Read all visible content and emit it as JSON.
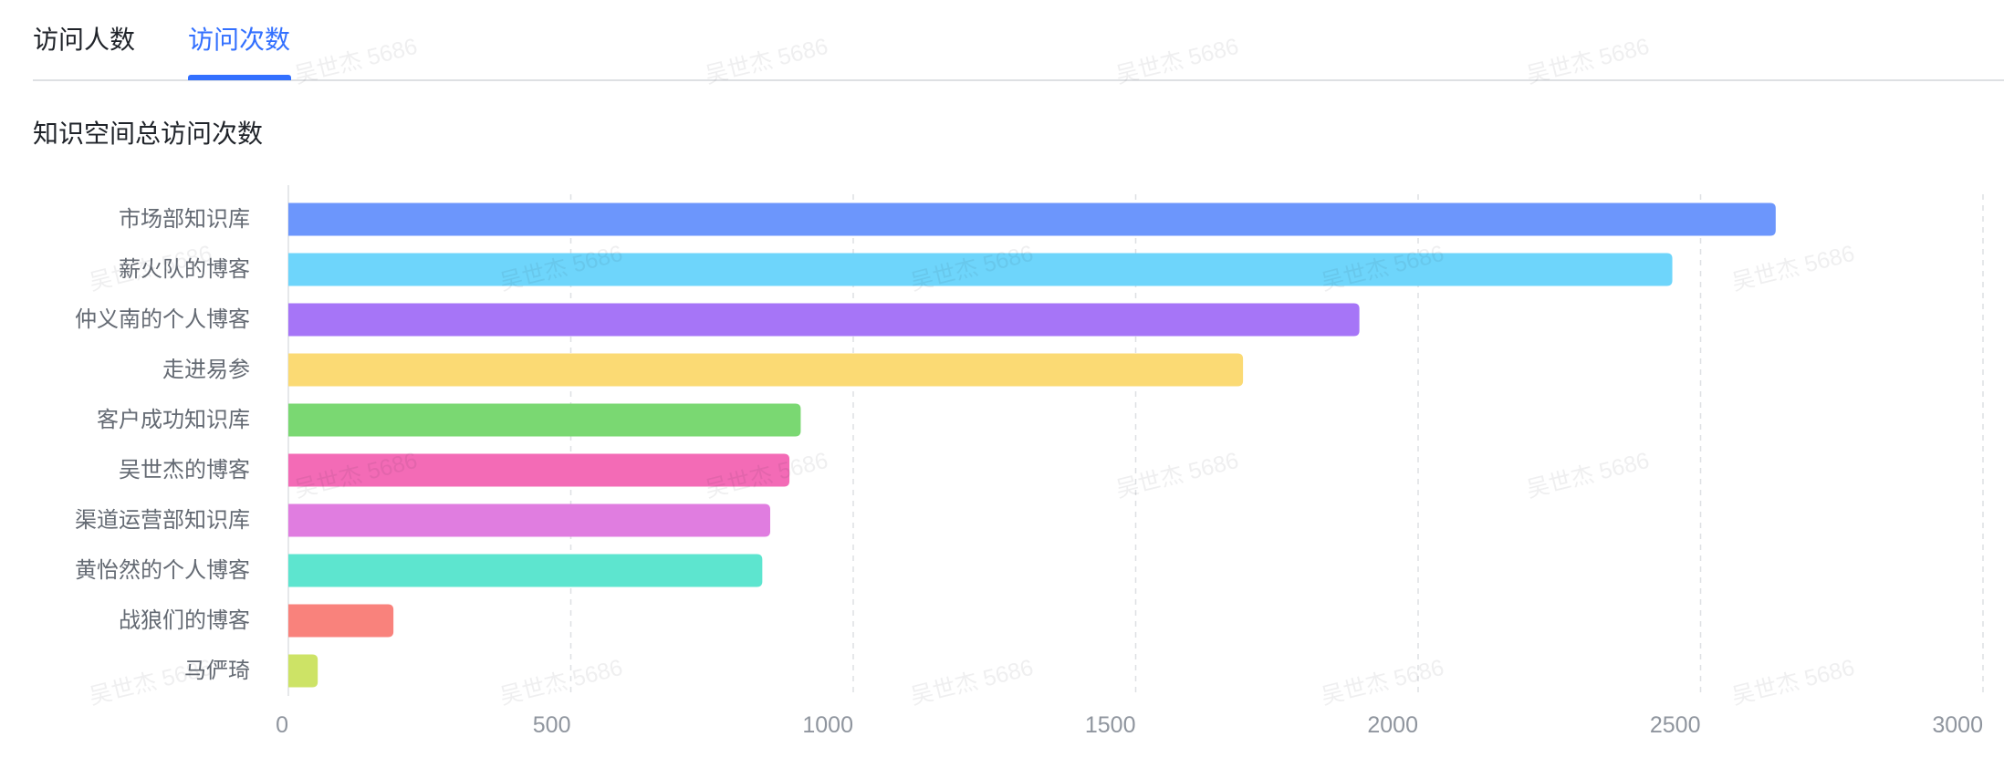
{
  "tabs": [
    {
      "label": "访问人数",
      "active": false
    },
    {
      "label": "访问次数",
      "active": true
    }
  ],
  "colors": {
    "accent": "#3370FF"
  },
  "watermark": {
    "text": "吴世杰 5686"
  },
  "chart_data": {
    "type": "bar",
    "orientation": "horizontal",
    "title": "知识空间总访问次数",
    "categories": [
      "市场部知识库",
      "薪火队的博客",
      "仲义南的个人博客",
      "走进易参",
      "客户成功知识库",
      "吴世杰的博客",
      "渠道运营部知识库",
      "黄怡然的个人博客",
      "战狼们的博客",
      "马俨琦"
    ],
    "values": [
      2633,
      2450,
      1896,
      1690,
      907,
      887,
      853,
      839,
      186,
      52
    ],
    "colors": [
      "#6C96FC",
      "#6ED5FB",
      "#A675F7",
      "#FBDA74",
      "#7AD872",
      "#F36BB6",
      "#E07DE0",
      "#5DE5CF",
      "#F9827C",
      "#CDE366"
    ],
    "xlim": [
      0,
      3000
    ],
    "xticks": [
      0,
      500,
      1000,
      1500,
      2000,
      2500,
      3000
    ],
    "grid": true
  }
}
